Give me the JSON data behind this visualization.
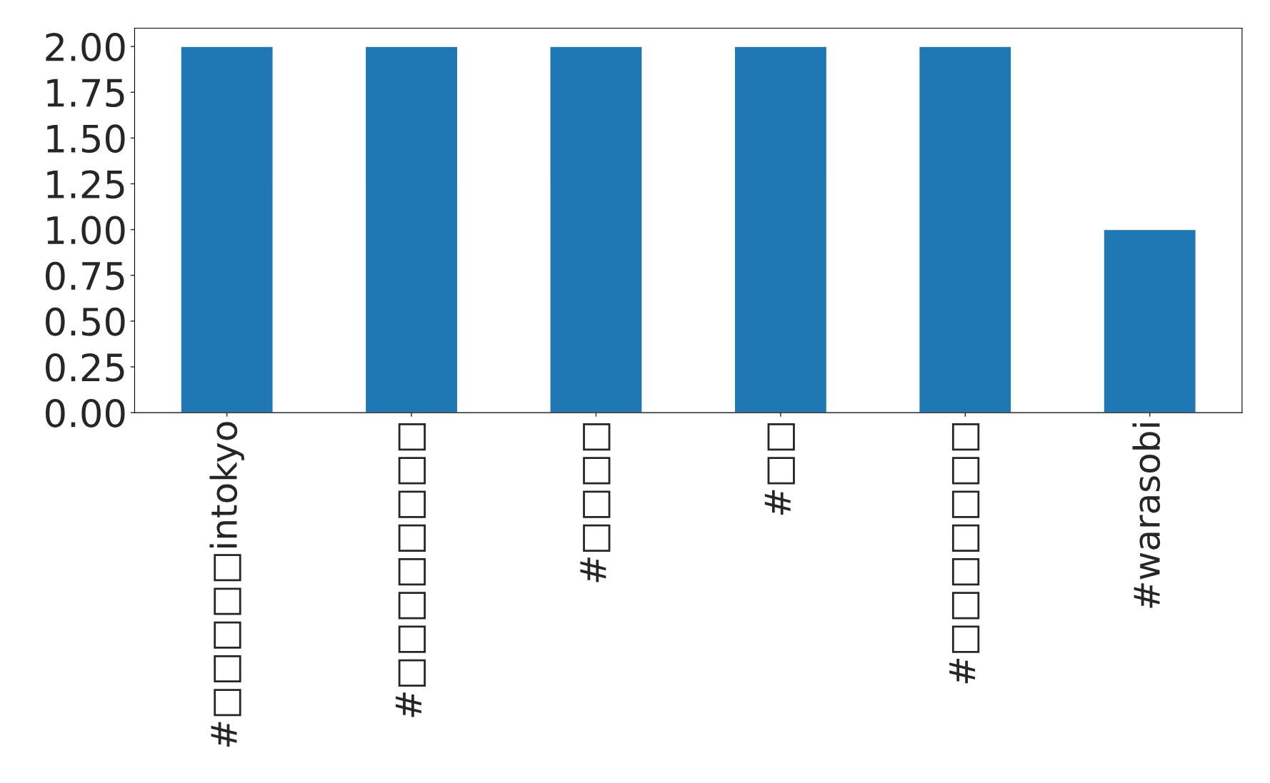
{
  "chart_data": {
    "type": "bar",
    "categories": [
      "#□□□□□intokyo",
      "#□□□□□□□□",
      "#□□□□",
      "#□□",
      "#□□□□□□□",
      "#warasobi"
    ],
    "values": [
      2,
      2,
      2,
      2,
      2,
      1
    ],
    "color": "#1f77b4",
    "ylim": [
      0,
      2.1
    ],
    "yticks": [
      {
        "value": 0,
        "label": "0.00"
      },
      {
        "value": 0.25,
        "label": "0.25"
      },
      {
        "value": 0.5,
        "label": "0.50"
      },
      {
        "value": 0.75,
        "label": "0.75"
      },
      {
        "value": 1,
        "label": "1.00"
      },
      {
        "value": 1.25,
        "label": "1.25"
      },
      {
        "value": 1.5,
        "label": "1.50"
      },
      {
        "value": 1.75,
        "label": "1.75"
      },
      {
        "value": 2,
        "label": "2.00"
      }
    ],
    "grid": false,
    "legend": false
  }
}
